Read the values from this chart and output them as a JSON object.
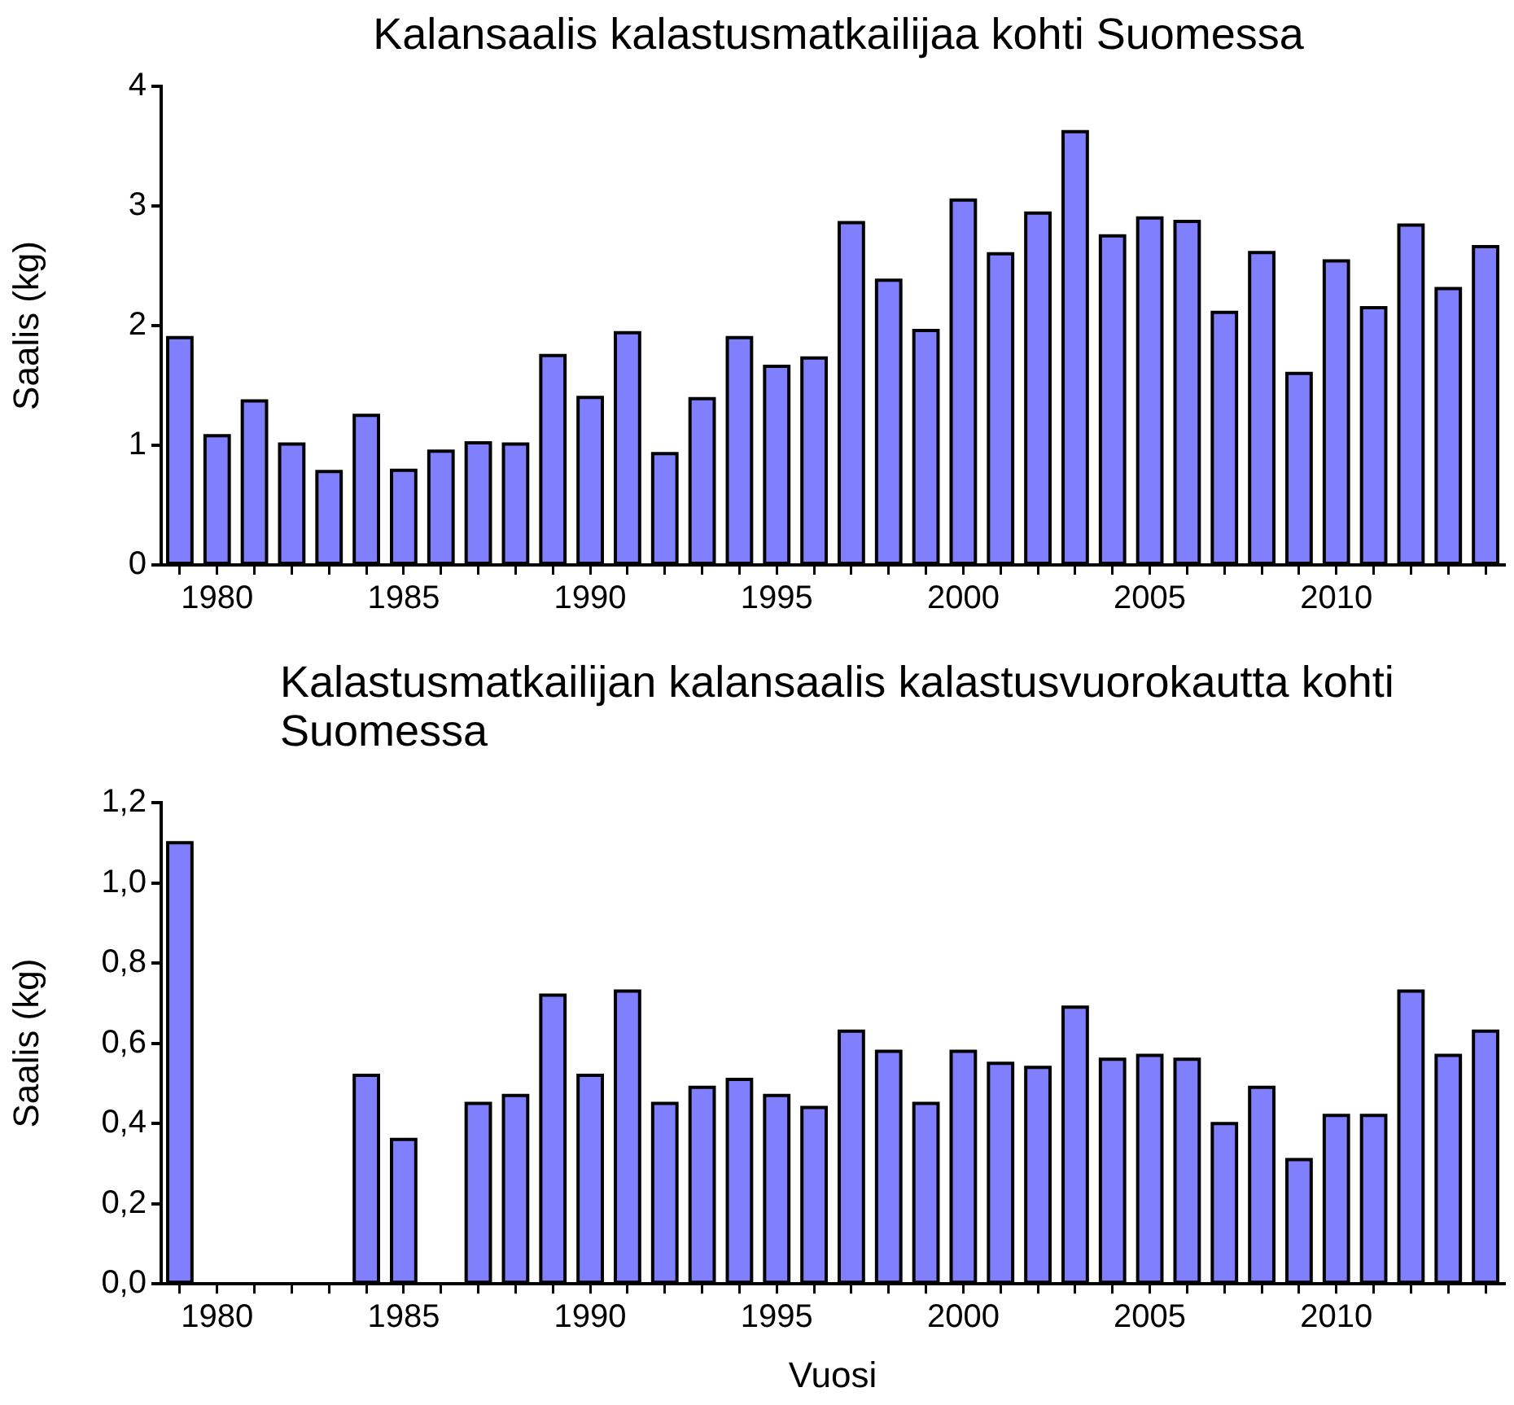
{
  "chart_data": [
    {
      "type": "bar",
      "title": "Kalansaalis kalastusmatkailijaa kohti Suomessa",
      "ylabel": "Saalis (kg)",
      "categories": [
        null,
        "1980",
        null,
        null,
        null,
        null,
        "1985",
        null,
        null,
        null,
        null,
        "1990",
        null,
        null,
        null,
        null,
        "1995",
        null,
        null,
        null,
        null,
        "2000",
        null,
        null,
        null,
        null,
        "2005",
        null,
        null,
        null,
        null,
        "2010",
        null,
        null,
        null,
        null
      ],
      "series": [
        {
          "color": "#8080ff",
          "values": [
            1.9,
            1.08,
            1.37,
            1.01,
            0.78,
            1.25,
            0.79,
            0.95,
            1.02,
            1.01,
            1.75,
            1.4,
            1.94,
            0.93,
            1.39,
            1.9,
            1.66,
            1.73,
            2.86,
            2.38,
            1.96,
            3.05,
            2.6,
            2.94,
            3.62,
            2.75,
            2.9,
            2.87,
            2.11,
            2.61,
            1.6,
            2.54,
            2.15,
            2.84,
            2.31,
            2.66
          ]
        }
      ],
      "ylim": [
        0,
        4
      ],
      "yticks": [
        0,
        1,
        2,
        3,
        4
      ],
      "grid": false,
      "legend": false
    },
    {
      "type": "bar",
      "title": "Kalastusmatkailijan kalansaalis kalastusvuorokautta kohti Suomessa",
      "ylabel": "Saalis (kg)",
      "xlabel": "Vuosi",
      "categories": [
        null,
        "1980",
        null,
        null,
        null,
        null,
        "1985",
        null,
        null,
        null,
        null,
        "1990",
        null,
        null,
        null,
        null,
        "1995",
        null,
        null,
        null,
        null,
        "2000",
        null,
        null,
        null,
        null,
        "2005",
        null,
        null,
        null,
        null,
        "2010",
        null,
        null,
        null,
        null
      ],
      "series": [
        {
          "color": "#8080ff",
          "values": [
            1.1,
            null,
            null,
            null,
            null,
            0.52,
            0.36,
            null,
            0.45,
            0.47,
            0.72,
            0.52,
            0.73,
            0.45,
            0.49,
            0.51,
            0.47,
            0.44,
            0.63,
            0.58,
            0.45,
            0.58,
            0.55,
            0.54,
            0.69,
            0.56,
            0.57,
            0.56,
            0.4,
            0.49,
            0.31,
            0.42,
            0.42,
            0.73,
            0.57,
            0.63
          ]
        }
      ],
      "ylim": [
        0,
        1.2
      ],
      "yticks": [
        {
          "value": 0,
          "label": "0,0"
        },
        {
          "value": 0.2,
          "label": "0,2"
        },
        {
          "value": 0.4,
          "label": "0,4"
        },
        {
          "value": 0.6,
          "label": "0,6"
        },
        {
          "value": 0.8,
          "label": "0,8"
        },
        {
          "value": 1.0,
          "label": "1,0"
        },
        {
          "value": 1.2,
          "label": "1,2"
        }
      ],
      "grid": false,
      "legend": false
    }
  ]
}
